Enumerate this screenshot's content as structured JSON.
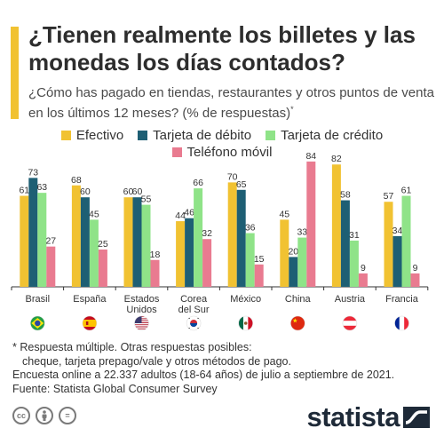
{
  "header": {
    "title": "¿Tienen realmente los billetes y las monedas los días contados?",
    "subtitle": "¿Cómo has pagado en tiendas, restaurantes y otros puntos de venta en los últimos 12 meses? (% de respuestas)",
    "subtitle_mark": "*",
    "accent_color": "#f1c232"
  },
  "chart_data": {
    "type": "bar",
    "categories": [
      "Brasil",
      "España",
      "Estados Unidos",
      "Corea del Sur",
      "México",
      "China",
      "Austria",
      "Francia"
    ],
    "series": [
      {
        "name": "Efectivo",
        "color": "#f1c232",
        "values": [
          61,
          68,
          60,
          44,
          70,
          45,
          82,
          57
        ]
      },
      {
        "name": "Tarjeta de débito",
        "color": "#1e5f74",
        "values": [
          73,
          60,
          60,
          46,
          65,
          20,
          58,
          34
        ]
      },
      {
        "name": "Tarjeta de crédito",
        "color": "#8fe388",
        "values": [
          63,
          45,
          55,
          66,
          36,
          33,
          31,
          61
        ]
      },
      {
        "name": "Teléfono móvil",
        "color": "#e97b90",
        "values": [
          27,
          25,
          18,
          32,
          15,
          84,
          9,
          9
        ]
      }
    ],
    "ylim": [
      0,
      90
    ],
    "flags": [
      "brazil-flag-icon",
      "spain-flag-icon",
      "usa-flag-icon",
      "south-korea-flag-icon",
      "mexico-flag-icon",
      "china-flag-icon",
      "austria-flag-icon",
      "france-flag-icon"
    ],
    "grid": false,
    "legend_position": "top"
  },
  "footnote": {
    "line1": "* Respuesta múltiple. Otras respuestas posibles:",
    "line2": "cheque, tarjeta prepago/vale y otros métodos de pago.",
    "line3": "Encuesta online a 22.337 adultos (18-64 años) de julio a septiembre de 2021.",
    "line4": "Fuente: Statista Global Consumer Survey"
  },
  "license_icons": [
    "cc-icon",
    "by-icon",
    "nd-icon"
  ],
  "license_labels": {
    "cc": "cc",
    "nd": "="
  },
  "brand": {
    "name": "statista"
  }
}
